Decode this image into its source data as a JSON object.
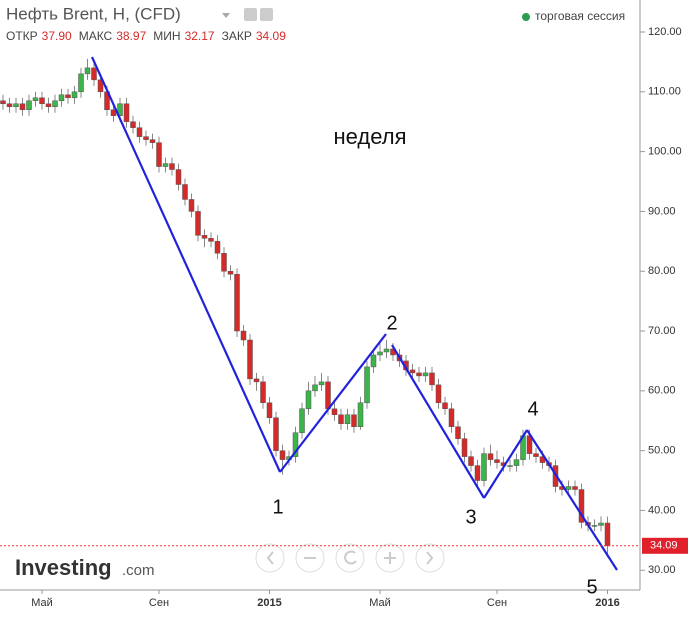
{
  "header": {
    "title": "Нефть Brent, Н, (CFD)",
    "ohlc": [
      {
        "label": "ОТКР",
        "value": "37.90"
      },
      {
        "label": "МАКС",
        "value": "38.97"
      },
      {
        "label": "МИН",
        "value": "32.17"
      },
      {
        "label": "ЗАКР",
        "value": "34.09"
      }
    ],
    "session": "торговая сессия",
    "logo": "Investing",
    "logo_suffix": ".com"
  },
  "chart_data": {
    "type": "candlestick",
    "categories": [
      null,
      null,
      null,
      null,
      null,
      null,
      "Май",
      null,
      null,
      null,
      null,
      null,
      null,
      null,
      null,
      null,
      null,
      null,
      null,
      null,
      null,
      null,
      null,
      null,
      "Сен",
      null,
      null,
      null,
      null,
      null,
      null,
      null,
      null,
      null,
      null,
      null,
      null,
      null,
      null,
      null,
      null,
      "2015",
      null,
      null,
      null,
      null,
      null,
      null,
      null,
      null,
      null,
      null,
      null,
      null,
      null,
      null,
      null,
      null,
      "Май",
      null,
      null,
      null,
      null,
      null,
      null,
      null,
      null,
      null,
      null,
      null,
      null,
      null,
      null,
      null,
      null,
      null,
      "Сен",
      null,
      null,
      null,
      null,
      null,
      null,
      null,
      null,
      null,
      null,
      null,
      null,
      null,
      null,
      null,
      null,
      "2016"
    ],
    "open": [
      108.5,
      108,
      107.5,
      108,
      107,
      108.5,
      109,
      108,
      107.5,
      108.5,
      109.5,
      109,
      110,
      113,
      114,
      112,
      110,
      107,
      106,
      108,
      105,
      104,
      102.5,
      102,
      101.5,
      97.5,
      98,
      97,
      94.5,
      92,
      90,
      86,
      85.5,
      85,
      83,
      80,
      79.5,
      70,
      68.5,
      62,
      61.5,
      58,
      55.5,
      50,
      48.5,
      49,
      53,
      57,
      60,
      61,
      61.5,
      57,
      56,
      54.5,
      56,
      54,
      58,
      64,
      66,
      66.5,
      67,
      66,
      65,
      63.5,
      63,
      62.5,
      63,
      61,
      58,
      57,
      54,
      52,
      49,
      47.5,
      45,
      49.5,
      48.5,
      48,
      47.5,
      47.5,
      48.5,
      52.5,
      49.5,
      49,
      48,
      47.5,
      44,
      43.5,
      44,
      43.5,
      38,
      37.5,
      37.5,
      37.9
    ],
    "high": [
      109.5,
      109,
      109,
      109,
      109.5,
      110,
      110,
      109,
      109.5,
      110.5,
      110.5,
      111,
      114,
      115.5,
      115,
      113,
      111,
      108,
      109,
      109,
      106,
      105,
      103.5,
      103,
      102.5,
      99,
      99,
      98,
      95.5,
      93,
      91,
      87,
      86.5,
      86,
      84,
      81,
      80.5,
      71,
      69.5,
      63,
      62.5,
      59,
      56.5,
      51,
      50,
      54,
      58,
      61.5,
      62.5,
      63,
      62.5,
      58,
      57,
      57,
      57,
      59,
      65,
      67,
      68,
      68.5,
      68,
      67,
      66,
      64.5,
      64,
      64,
      64,
      62,
      59,
      58,
      55,
      53,
      50,
      48.5,
      50.5,
      51,
      50,
      49,
      48.5,
      49.5,
      53.5,
      53.5,
      50.5,
      50,
      49,
      48.5,
      45,
      45,
      45,
      44.5,
      39,
      38.5,
      39,
      38.97
    ],
    "low": [
      107,
      106.5,
      106.5,
      106,
      106,
      107.5,
      107,
      106.5,
      106.5,
      107.5,
      108,
      108,
      109,
      112,
      111,
      109,
      106,
      105,
      105,
      104,
      103,
      101.5,
      101,
      100.5,
      96.5,
      96.5,
      96,
      93.5,
      91,
      89,
      85,
      84,
      84,
      82,
      79,
      78.5,
      69,
      67.5,
      61,
      60,
      57,
      54.5,
      49,
      46,
      47.5,
      48,
      52,
      56,
      59,
      60,
      56,
      55,
      53.5,
      53.5,
      53,
      53.5,
      57,
      63,
      65,
      65.5,
      65,
      64,
      62.5,
      62,
      61.5,
      61.5,
      60,
      57,
      56,
      53,
      51,
      48,
      46.5,
      44,
      44,
      47.5,
      47,
      46.5,
      46.5,
      46.5,
      47.5,
      48.5,
      48,
      47,
      46.5,
      43,
      42.5,
      42.5,
      42.5,
      37,
      36.5,
      36.5,
      36.5,
      32.17
    ],
    "close": [
      108,
      107.5,
      108,
      107,
      108.5,
      109,
      108,
      107.5,
      108.5,
      109.5,
      109,
      110,
      113,
      114,
      112,
      110,
      107,
      106,
      108,
      105,
      104,
      102.5,
      102,
      101.5,
      97.5,
      98,
      97,
      94.5,
      92,
      90,
      86,
      85.5,
      85,
      83,
      80,
      79.5,
      70,
      68.5,
      62,
      61.5,
      58,
      55.5,
      50,
      48.5,
      49,
      53,
      57,
      60,
      61,
      61.5,
      57,
      56,
      54.5,
      56,
      54,
      58,
      64,
      66,
      66.5,
      67,
      66,
      65,
      63.5,
      63,
      62.5,
      63,
      61,
      58,
      57,
      54,
      52,
      49,
      47.5,
      45,
      49.5,
      48.5,
      48,
      47.5,
      47.5,
      48.5,
      52.5,
      49.5,
      49,
      48,
      47.5,
      44,
      43.5,
      44,
      43.5,
      38,
      37.5,
      37.5,
      37.9,
      34.09
    ],
    "up_color": "#3db44a",
    "down_color": "#d52a2a",
    "line_color": "#2222dd",
    "ylim": [
      26.7,
      125.35
    ],
    "yticks": [
      {
        "value": 30,
        "label": "30.00"
      },
      {
        "value": 40,
        "label": "40.00"
      },
      {
        "value": 50,
        "label": "50.00"
      },
      {
        "value": 60,
        "label": "60.00"
      },
      {
        "value": 70,
        "label": "70.00"
      },
      {
        "value": 80,
        "label": "80.00"
      },
      {
        "value": 90,
        "label": "90.00"
      },
      {
        "value": 100,
        "label": "100.00"
      },
      {
        "value": 110,
        "label": "110.00"
      },
      {
        "value": 120,
        "label": "120.00"
      }
    ],
    "grid": false,
    "annotations": [
      "неделя",
      "1",
      "2",
      "3",
      "4",
      "5"
    ]
  }
}
